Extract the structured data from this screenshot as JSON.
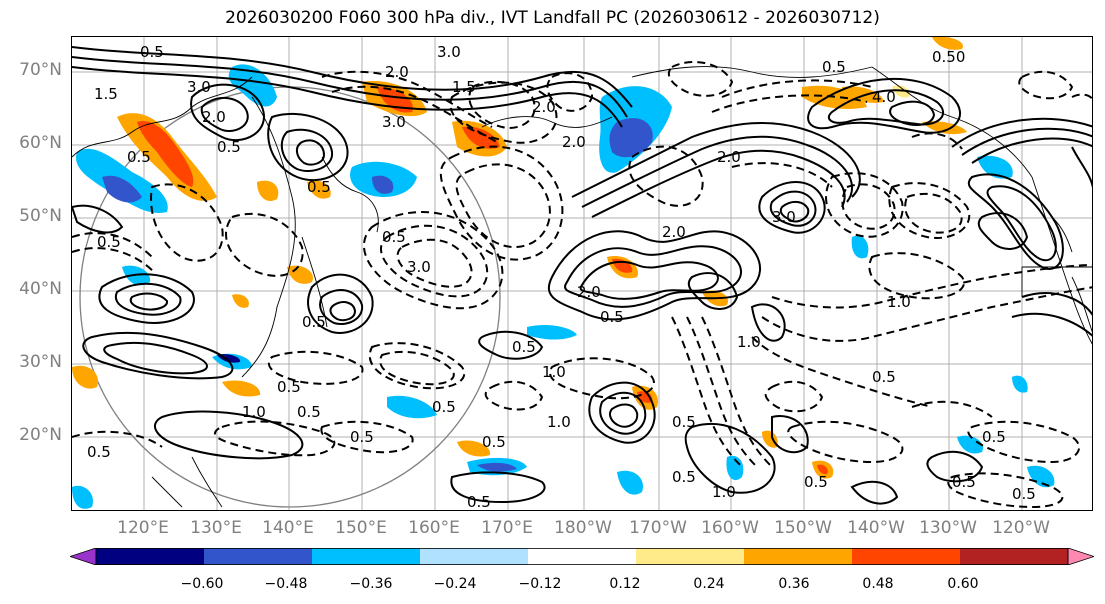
{
  "title": "2026030200 F060 300 hPa div., IVT Landfall PC (2026030612 - 2026030712)",
  "lat_labels": [
    "70°N",
    "60°N",
    "50°N",
    "40°N",
    "30°N",
    "20°N"
  ],
  "lon_labels": [
    "120°E",
    "130°E",
    "140°E",
    "150°E",
    "160°E",
    "170°E",
    "180°W",
    "170°W",
    "160°W",
    "150°W",
    "140°W",
    "130°W",
    "120°W"
  ],
  "colorbar": {
    "tick_labels": [
      "−0.60",
      "−0.48",
      "−0.36",
      "−0.24",
      "−0.12",
      "0.12",
      "0.24",
      "0.36",
      "0.48",
      "0.60"
    ],
    "colors": [
      "#9933cc",
      "#000080",
      "#3355cc",
      "#00bfff",
      "#b0e2ff",
      "#ffffff",
      "#ffeb8a",
      "#ffa500",
      "#ff4500",
      "#b22222",
      "#ff88b0"
    ]
  },
  "contour_labels": {
    "c01": "3.0",
    "c02": "1.5",
    "c03": "3.0",
    "c04": "2.0",
    "c05": "0.5",
    "c06": "2.0",
    "c07": "0.5",
    "c08": "0.5",
    "c09": "0.5",
    "c10": "1.5",
    "c11": "3.0",
    "c12": "0.5",
    "c13": "2.0",
    "c14": "2.0",
    "c15": "2.0",
    "c16": "3.0",
    "c17": "0.5",
    "c18": "0.5",
    "c19": "0.5",
    "c20": "1.0",
    "c21": "0.5",
    "c22": "0.5",
    "c23": "2.0",
    "c24": "0.5",
    "c25": "0.5",
    "c26": "1.0",
    "c27": "0.5",
    "c28": "1.0",
    "c29": "0.5",
    "c30": "0.5",
    "c31": "0.5",
    "c32": "0.5",
    "c33": "1.0",
    "c34": "0.5",
    "c35": "2.0",
    "c36": "0.50",
    "c37": "0.5",
    "c38": "4.0",
    "c39": "3.0",
    "c40": "1.0",
    "c41": "0.5",
    "c42": "0.5",
    "c43": "0.5",
    "c44": "0.5",
    "c45": "1.0",
    "c46": "0.5"
  }
}
